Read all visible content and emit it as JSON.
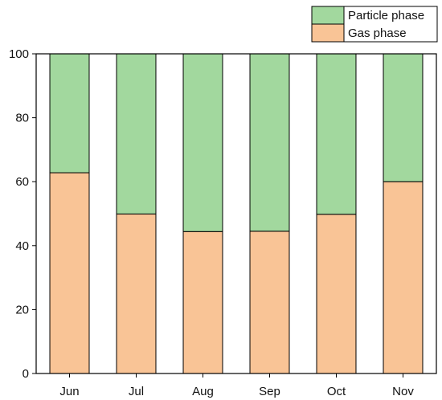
{
  "chart_data": {
    "type": "bar",
    "stacked": true,
    "categories": [
      "Jun",
      "Jul",
      "Aug",
      "Sep",
      "Oct",
      "Nov"
    ],
    "series": [
      {
        "name": "Gas phase",
        "color": "#f9c496",
        "values": [
          62.8,
          49.9,
          44.4,
          44.5,
          49.8,
          60.0
        ]
      },
      {
        "name": "Particle phase",
        "color": "#a2d89e",
        "values": [
          37.2,
          50.1,
          55.6,
          55.5,
          50.2,
          40.0
        ]
      }
    ],
    "ylim": [
      0,
      100
    ],
    "yticks": [
      0,
      20,
      40,
      60,
      80,
      100
    ],
    "grid": false,
    "legend_position": "top-right",
    "legend_order": [
      "Particle phase",
      "Gas phase"
    ]
  }
}
